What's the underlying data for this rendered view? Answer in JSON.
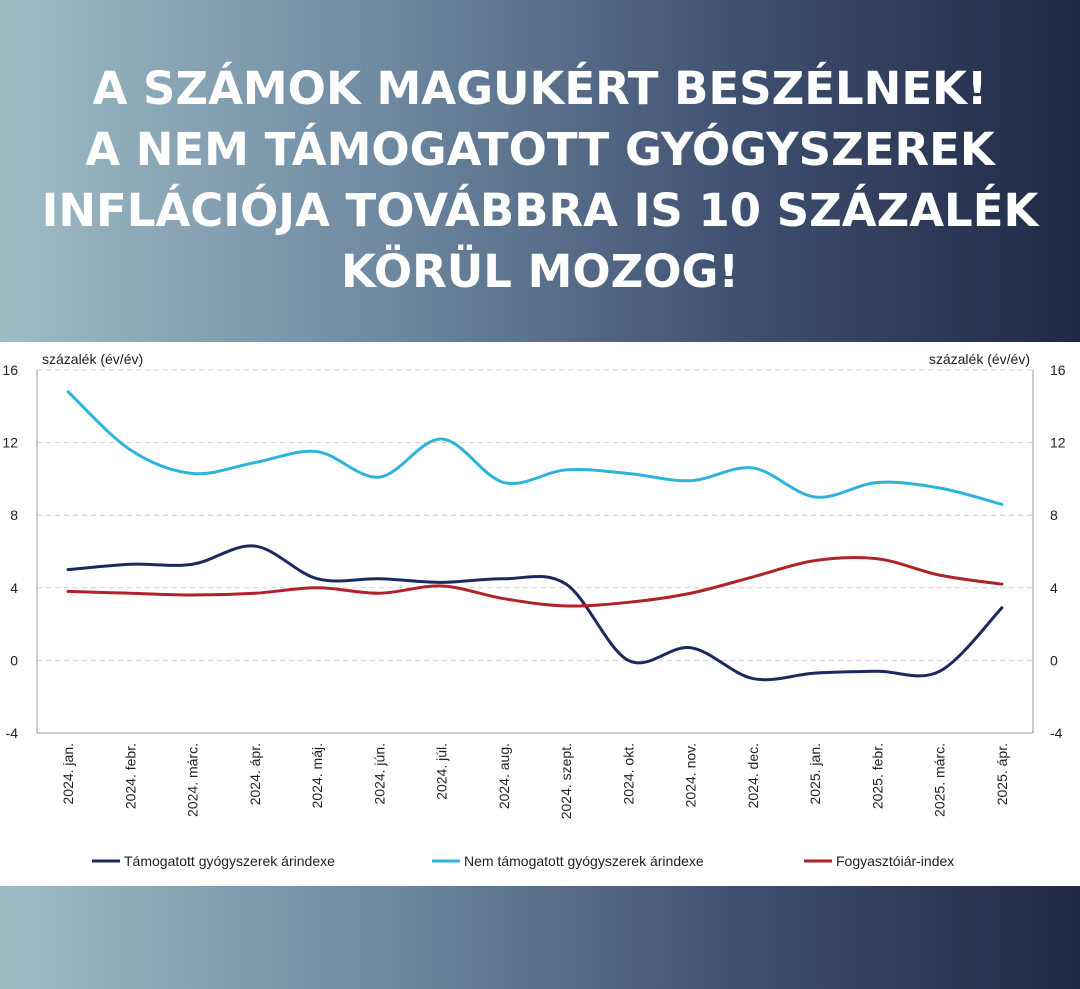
{
  "headline": {
    "lines": [
      "A SZÁMOK MAGUKÉRT BESZÉLNEK!",
      "A NEM TÁMOGATOTT GYÓGYSZEREK",
      "INFLÁCIÓJA TOVÁBBRA IS 10 SZÁZALÉK",
      "KÖRÜL MOZOG!"
    ]
  },
  "chart_data": {
    "type": "line",
    "ylabel_left": "százalék (év/év)",
    "ylabel_right": "százalék (év/év)",
    "ylim": [
      -4,
      16
    ],
    "yticks": [
      -4,
      0,
      4,
      8,
      12,
      16
    ],
    "grid": true,
    "legend_position": "bottom",
    "categories": [
      "2024. jan.",
      "2024. febr.",
      "2024. márc.",
      "2024. ápr.",
      "2024. máj.",
      "2024. jún.",
      "2024. júl.",
      "2024. aug.",
      "2024. szept.",
      "2024. okt.",
      "2024. nov.",
      "2024. dec.",
      "2025. jan.",
      "2025. febr.",
      "2025. márc.",
      "2025. ápr."
    ],
    "series": [
      {
        "name": "Támogatott gyógyszerek árindexe",
        "color": "#1b2a5c",
        "values": [
          5.0,
          5.3,
          5.3,
          6.3,
          4.5,
          4.5,
          4.3,
          4.5,
          4.2,
          0.0,
          0.7,
          -1.0,
          -0.7,
          -0.6,
          -0.6,
          2.9
        ]
      },
      {
        "name": "Nem támogatott gyógyszerek árindexe",
        "color": "#2db4dc",
        "values": [
          14.8,
          11.6,
          10.3,
          10.9,
          11.5,
          10.1,
          12.2,
          9.8,
          10.5,
          10.3,
          9.9,
          10.6,
          9.0,
          9.8,
          9.5,
          8.6
        ]
      },
      {
        "name": "Fogyasztóiár-index",
        "color": "#b0222a",
        "values": [
          3.8,
          3.7,
          3.6,
          3.7,
          4.0,
          3.7,
          4.1,
          3.4,
          3.0,
          3.2,
          3.7,
          4.6,
          5.5,
          5.6,
          4.7,
          4.2
        ]
      }
    ]
  }
}
